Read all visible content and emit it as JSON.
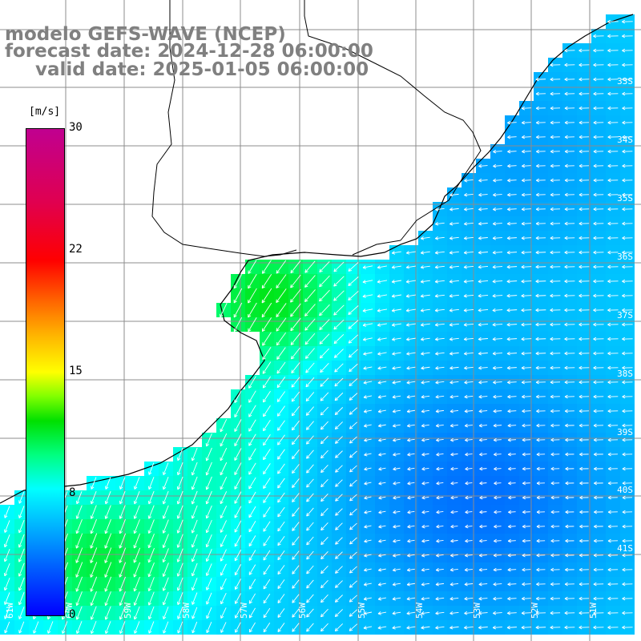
{
  "title": {
    "line1": "modelo GEFS-WAVE (NCEP)",
    "line2": "forecast date: 2024-12-28 06:00:00",
    "line3": "valid date: 2025-01-05 06:00:00"
  },
  "colorbar": {
    "unit": "[m/s]",
    "ticks": [
      "30",
      "22",
      "15",
      "8",
      "0"
    ],
    "colors": [
      "#0000ff",
      "#00ffff",
      "#00e000",
      "#ffff00",
      "#ff0000",
      "#c00090"
    ]
  },
  "latitude_labels": [
    "33S",
    "34S",
    "35S",
    "36S",
    "37S",
    "38S",
    "39S",
    "40S",
    "41S"
  ],
  "longitude_labels": [
    "61W",
    "60W",
    "59W",
    "58W",
    "57W",
    "56W",
    "55W",
    "54W",
    "53W",
    "52W",
    "51W"
  ],
  "colors": {
    "land": "#ffffff",
    "coastline": "#000000",
    "grid": "#8c8c8c",
    "arrows": "#ffffff",
    "title_text": "#808080"
  }
}
